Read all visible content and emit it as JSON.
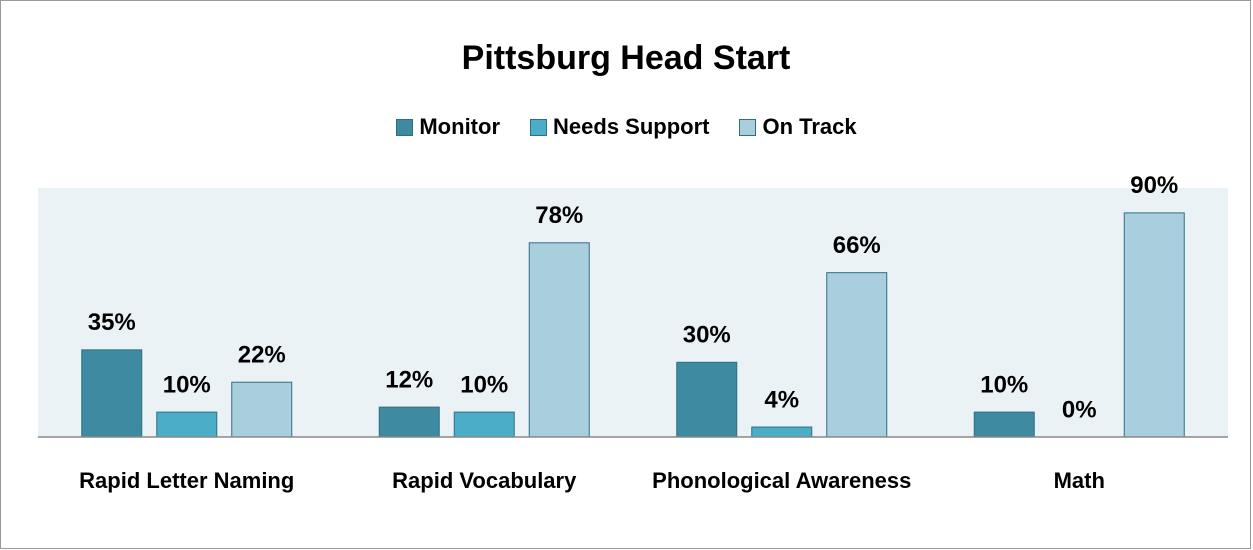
{
  "chart_data": {
    "type": "bar",
    "title": "Pittsburg Head Start",
    "categories": [
      "Rapid Letter Naming",
      "Rapid Vocabulary",
      "Phonological Awareness",
      "Math"
    ],
    "series": [
      {
        "name": "Monitor",
        "color": "#3d8aa1",
        "values": [
          35,
          12,
          30,
          10
        ],
        "value_labels": [
          "35%",
          "12%",
          "30%",
          "10%"
        ]
      },
      {
        "name": "Needs Support",
        "color": "#4badc7",
        "values": [
          10,
          10,
          4,
          0
        ],
        "value_labels": [
          "10%",
          "10%",
          "4%",
          "0%"
        ]
      },
      {
        "name": "On Track",
        "color": "#a9cfde",
        "values": [
          22,
          78,
          66,
          90
        ],
        "value_labels": [
          "22%",
          "78%",
          "66%",
          "90%"
        ]
      }
    ],
    "ylim": [
      0,
      100
    ],
    "legend": "top"
  }
}
